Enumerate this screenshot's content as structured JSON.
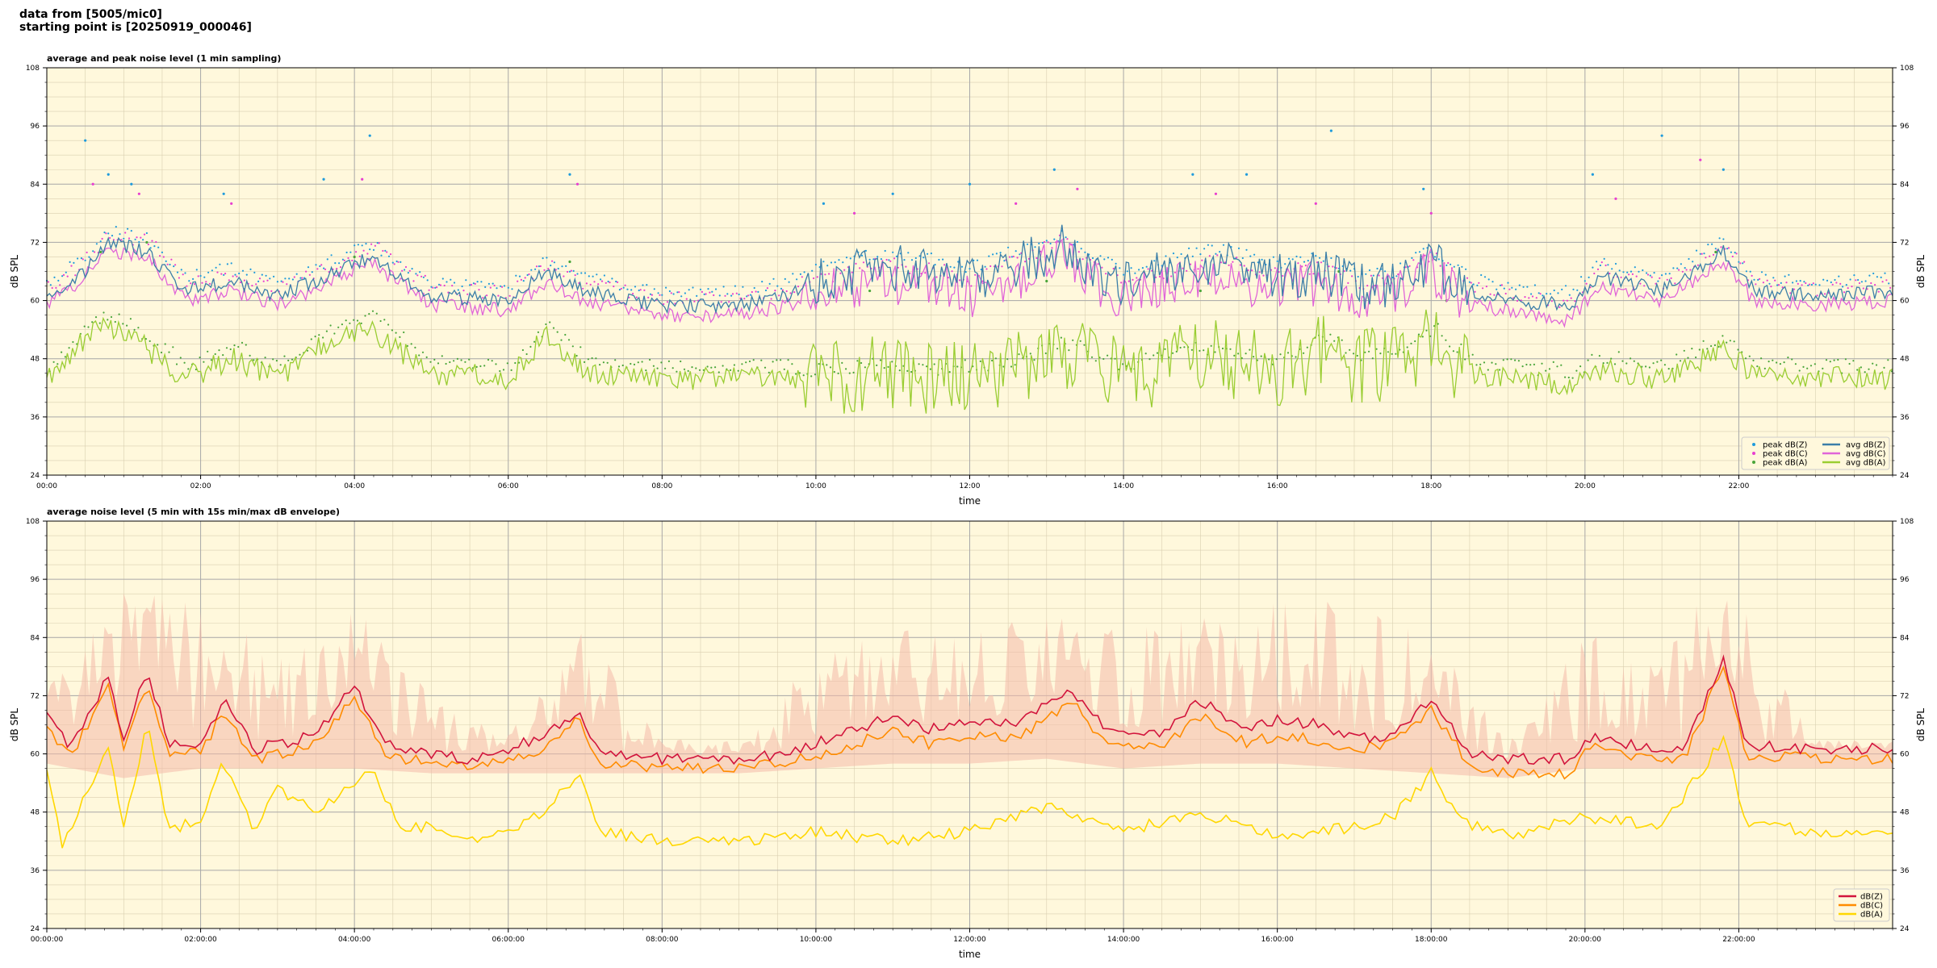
{
  "header": {
    "line1": "data from [5005/mic0]",
    "line2": "starting point is [20250919_000046]"
  },
  "colors": {
    "background": "#fff8dc",
    "peak_z": "#1f9bdc",
    "peak_c": "#e83fd0",
    "peak_a": "#4aa53a",
    "avg_z": "#3b7ea8",
    "avg_c": "#e065d8",
    "avg_a": "#9acd32",
    "avg_overlap": "#a977d6",
    "dbz": "#d2143c",
    "dbc": "#ff8c00",
    "dba": "#ffd700",
    "envelope": "#f4b9aa"
  },
  "chart_data": [
    {
      "type": "line",
      "title": "average and peak noise level (1 min sampling)",
      "xlabel": "time",
      "ylabel": "dB SPL",
      "ylim": [
        24,
        108
      ],
      "yticks": [
        24,
        36,
        48,
        60,
        72,
        84,
        96,
        108
      ],
      "xlim_hours": [
        0,
        24
      ],
      "xtick_labels": [
        "00:00",
        "02:00",
        "04:00",
        "06:00",
        "08:00",
        "10:00",
        "12:00",
        "14:00",
        "16:00",
        "18:00",
        "20:00",
        "22:00"
      ],
      "grid": true,
      "legend_position": "lower-right",
      "legend": [
        "peak dB(Z)",
        "peak dB(C)",
        "peak dB(A)",
        "avg dB(Z)",
        "avg dB(C)",
        "avg dB(A)"
      ],
      "series": [
        {
          "name": "avg dB(Z)",
          "hours": [
            0,
            0.5,
            0.8,
            1.3,
            1.8,
            2.4,
            3,
            3.5,
            4.2,
            5,
            6,
            6.5,
            7,
            8,
            9,
            9.6,
            10,
            10.8,
            11.5,
            12,
            12.5,
            13.2,
            14,
            14.6,
            15.2,
            16,
            16.6,
            17,
            17.5,
            18,
            18.5,
            19,
            19.8,
            20.2,
            21,
            21.8,
            22.2,
            23,
            24
          ],
          "values": [
            61,
            66,
            72,
            70,
            62,
            64,
            61,
            64,
            69,
            61,
            60,
            66,
            62,
            59,
            59,
            61,
            64,
            67,
            66,
            64,
            67,
            71,
            63,
            66,
            68,
            65,
            66,
            63,
            63,
            68,
            62,
            60,
            59,
            65,
            62,
            70,
            62,
            61,
            62
          ]
        },
        {
          "name": "avg dB(C)",
          "hours": [
            0,
            0.5,
            0.8,
            1.3,
            1.8,
            2.4,
            3,
            3.5,
            4.2,
            5,
            6,
            6.5,
            7,
            8,
            9,
            9.6,
            10,
            10.8,
            11.5,
            12,
            12.5,
            13.2,
            14,
            14.6,
            15.2,
            16,
            16.6,
            17,
            17.5,
            18,
            18.5,
            19,
            19.8,
            20.2,
            21,
            21.8,
            22.2,
            23,
            24
          ],
          "values": [
            59,
            65,
            70,
            69,
            60,
            62,
            59,
            62,
            68,
            59,
            58,
            64,
            60,
            57,
            57,
            59,
            61,
            64,
            63,
            61,
            64,
            69,
            60,
            63,
            65,
            62,
            64,
            60,
            61,
            66,
            59,
            58,
            56,
            63,
            60,
            68,
            60,
            59,
            60
          ]
        },
        {
          "name": "avg dB(A)",
          "hours": [
            0,
            0.5,
            0.8,
            1.3,
            1.8,
            2.4,
            3,
            3.5,
            4.2,
            5,
            6,
            6.5,
            7,
            8,
            9,
            9.6,
            10,
            10.8,
            11.5,
            12,
            12.5,
            13.2,
            14,
            14.6,
            15.2,
            16,
            16.6,
            17,
            17.5,
            18,
            18.5,
            19,
            19.8,
            20.2,
            21,
            21.8,
            22.2,
            23,
            24
          ],
          "values": [
            43,
            52,
            55,
            50,
            44,
            48,
            44,
            50,
            54,
            45,
            44,
            53,
            45,
            44,
            44,
            44,
            43,
            45,
            43,
            44,
            45,
            49,
            44,
            47,
            48,
            45,
            50,
            46,
            47,
            52,
            45,
            44,
            43,
            46,
            44,
            50,
            45,
            44,
            44
          ]
        },
        {
          "name": "peak dB(Z)",
          "hours": [
            0.5,
            0.8,
            1.1,
            2.3,
            3.6,
            4.2,
            6.8,
            10.1,
            11,
            12,
            13.1,
            14.9,
            15.6,
            16.7,
            17.9,
            20.1,
            21,
            21.8
          ],
          "values": [
            93,
            86,
            84,
            82,
            85,
            94,
            86,
            80,
            82,
            84,
            87,
            86,
            86,
            95,
            83,
            86,
            94,
            87
          ]
        },
        {
          "name": "peak dB(C)",
          "hours": [
            0.6,
            1.2,
            2.4,
            4.1,
            6.9,
            10.5,
            12.6,
            13.4,
            15.2,
            16.5,
            18,
            20.4,
            21.5
          ],
          "values": [
            84,
            82,
            80,
            85,
            84,
            78,
            80,
            83,
            82,
            80,
            78,
            81,
            89
          ]
        },
        {
          "name": "peak dB(A)",
          "hours": [
            0.7,
            1.3,
            4,
            6.8,
            10.7,
            13,
            15,
            16.8,
            18.2,
            21.7
          ],
          "values": [
            70,
            72,
            69,
            68,
            62,
            64,
            62,
            66,
            60,
            70
          ]
        }
      ]
    },
    {
      "type": "line",
      "title": "average noise level (5 min with 15s min/max dB envelope)",
      "xlabel": "time",
      "ylabel": "dB SPL",
      "ylim": [
        24,
        108
      ],
      "yticks": [
        24,
        36,
        48,
        60,
        72,
        84,
        96,
        108
      ],
      "xlim_hours": [
        0,
        24
      ],
      "xtick_labels": [
        "00:00:00",
        "02:00:00",
        "04:00:00",
        "06:00:00",
        "08:00:00",
        "10:00:00",
        "12:00:00",
        "14:00:00",
        "16:00:00",
        "18:00:00",
        "20:00:00",
        "22:00:00"
      ],
      "grid": true,
      "legend_position": "lower-right",
      "legend": [
        "dB(Z)",
        "dB(C)",
        "dB(A)"
      ],
      "series": [
        {
          "name": "dB(Z)",
          "hours": [
            0,
            0.3,
            0.8,
            1,
            1.3,
            1.6,
            2,
            2.3,
            2.7,
            3,
            3.5,
            4,
            4.4,
            5,
            5.5,
            6.4,
            6.9,
            7.2,
            8,
            9,
            9.6,
            10.5,
            11,
            11.5,
            12,
            12.5,
            13,
            13.3,
            13.8,
            14.5,
            15,
            15.6,
            16,
            16.5,
            17,
            17.5,
            18,
            18.5,
            19,
            19.8,
            20.1,
            20.8,
            21.3,
            21.8,
            22.1,
            23,
            24
          ],
          "values": [
            69,
            61,
            76,
            63,
            77,
            62,
            62,
            71,
            61,
            62,
            64,
            74,
            62,
            60,
            59,
            63,
            69,
            60,
            59,
            59,
            60,
            65,
            68,
            65,
            67,
            66,
            70,
            73,
            65,
            64,
            71,
            65,
            67,
            66,
            63,
            64,
            71,
            60,
            59,
            59,
            64,
            61,
            61,
            80,
            62,
            61,
            61
          ]
        },
        {
          "name": "dB(C)",
          "hours": [
            0,
            0.3,
            0.8,
            1,
            1.3,
            1.6,
            2,
            2.3,
            2.7,
            3,
            3.5,
            4,
            4.4,
            5,
            5.5,
            6.4,
            6.9,
            7.2,
            8,
            9,
            9.6,
            10.5,
            11,
            11.5,
            12,
            12.5,
            13,
            13.3,
            13.8,
            14.5,
            15,
            15.6,
            16,
            16.5,
            17,
            17.5,
            18,
            18.5,
            19,
            19.8,
            20.1,
            20.8,
            21.3,
            21.8,
            22.1,
            23,
            24
          ],
          "values": [
            66,
            59,
            74,
            61,
            75,
            60,
            60,
            69,
            59,
            60,
            62,
            72,
            60,
            58,
            57,
            61,
            67,
            58,
            57,
            57,
            58,
            62,
            65,
            62,
            64,
            63,
            67,
            71,
            62,
            61,
            68,
            62,
            64,
            63,
            61,
            62,
            69,
            58,
            56,
            56,
            62,
            59,
            59,
            78,
            60,
            59,
            59
          ]
        },
        {
          "name": "dB(A)",
          "hours": [
            0,
            0.2,
            0.8,
            1,
            1.3,
            1.6,
            2,
            2.3,
            2.7,
            3,
            3.5,
            4.2,
            4.6,
            5,
            5.5,
            6.4,
            6.9,
            7.2,
            8,
            9,
            10,
            11,
            12,
            13,
            13.3,
            14,
            15,
            16,
            17,
            17.5,
            18,
            18.4,
            19,
            20,
            21,
            21.8,
            22.1,
            23,
            24
          ],
          "values": [
            56,
            41,
            61,
            45,
            66,
            44,
            47,
            58,
            44,
            53,
            48,
            57,
            45,
            45,
            42,
            47,
            56,
            44,
            42,
            42,
            44,
            42,
            44,
            49,
            48,
            44,
            48,
            43,
            45,
            47,
            56,
            46,
            43,
            47,
            45,
            63,
            46,
            44,
            44
          ]
        }
      ],
      "envelope": {
        "name": "15s min/max dB envelope",
        "hours": [
          0,
          1,
          2,
          3,
          4,
          5,
          6,
          7,
          8,
          9,
          10,
          11,
          12,
          13,
          14,
          15,
          16,
          17,
          18,
          19,
          20,
          21,
          22,
          23,
          24
        ],
        "max": [
          75,
          94,
          92,
          80,
          93,
          72,
          64,
          86,
          63,
          63,
          80,
          86,
          86,
          90,
          87,
          90,
          92,
          94,
          84,
          64,
          88,
          92,
          92,
          63,
          63
        ],
        "min": [
          58,
          55,
          57,
          57,
          57,
          56,
          56,
          56,
          56,
          56,
          57,
          58,
          58,
          59,
          57,
          58,
          58,
          57,
          56,
          55,
          57,
          57,
          57,
          57,
          57
        ]
      }
    }
  ]
}
